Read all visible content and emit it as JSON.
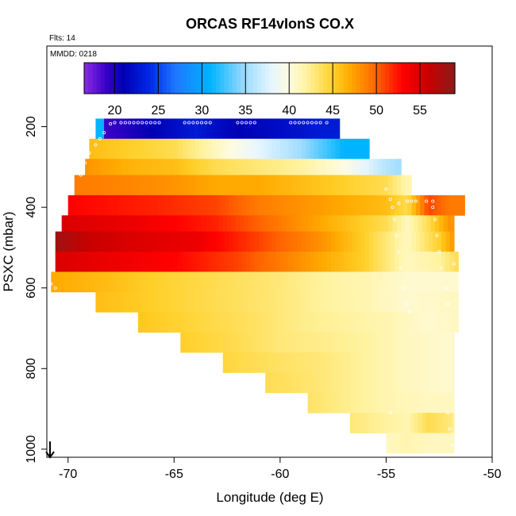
{
  "chart_data": {
    "type": "heatmap",
    "title": "ORCAS RF14vIonS CO.X",
    "annotations": {
      "flights": "Flts: 14",
      "date": "MMDD: 0218"
    },
    "xlabel": "Longitude (deg E)",
    "ylabel": "PSXC (mbar)",
    "xlim": [
      -71,
      -50
    ],
    "ylim": [
      1020,
      0
    ],
    "x_ticks": [
      -70,
      -65,
      -60,
      -55,
      -50
    ],
    "x_tick_labels": [
      "-70",
      "-65",
      "-60",
      "-55",
      "-50"
    ],
    "y_ticks": [
      200,
      400,
      600,
      800,
      1000
    ],
    "y_tick_labels": [
      "200",
      "400",
      "600",
      "800",
      "1000"
    ],
    "colorbar": {
      "range": [
        16.5,
        59
      ],
      "ticks": [
        20,
        25,
        30,
        35,
        40,
        45,
        50,
        55
      ],
      "tick_labels": [
        "20",
        "25",
        "30",
        "35",
        "40",
        "45",
        "50",
        "55"
      ],
      "stops": [
        [
          16.5,
          "#8a2be2"
        ],
        [
          19,
          "#3a00c8"
        ],
        [
          21,
          "#0000b4"
        ],
        [
          24,
          "#0028e6"
        ],
        [
          27,
          "#1e78ff"
        ],
        [
          31,
          "#00b4ff"
        ],
        [
          35,
          "#9fdcff"
        ],
        [
          38,
          "#e6f6ff"
        ],
        [
          40,
          "#fffbe0"
        ],
        [
          42,
          "#fff3a0"
        ],
        [
          45,
          "#ffd02a"
        ],
        [
          47,
          "#ffaa00"
        ],
        [
          50,
          "#ff6400"
        ],
        [
          53,
          "#ff0000"
        ],
        [
          56,
          "#c80000"
        ],
        [
          59,
          "#8b1a1a"
        ]
      ]
    },
    "rows": [
      {
        "p": [
          180,
          230
        ],
        "x": [
          -68.7,
          -57.2
        ],
        "c": [
          [
            -68.7,
            31
          ],
          [
            -68.4,
            31
          ],
          [
            -68.2,
            19
          ],
          [
            -66,
            21
          ],
          [
            -64,
            23
          ],
          [
            -62,
            21
          ],
          [
            -60,
            22
          ],
          [
            -58,
            23
          ],
          [
            -57.2,
            23
          ]
        ]
      },
      {
        "p": [
          230,
          280
        ],
        "x": [
          -69.0,
          -55.8
        ],
        "c": [
          [
            -69,
            46
          ],
          [
            -67,
            45
          ],
          [
            -65,
            44
          ],
          [
            -63,
            41
          ],
          [
            -61,
            38
          ],
          [
            -59,
            35
          ],
          [
            -57,
            31
          ],
          [
            -55.8,
            31
          ]
        ]
      },
      {
        "p": [
          280,
          320
        ],
        "x": [
          -69.2,
          -54.3
        ],
        "c": [
          [
            -69.2,
            48
          ],
          [
            -67,
            46.5
          ],
          [
            -65,
            46
          ],
          [
            -63,
            44
          ],
          [
            -61,
            43
          ],
          [
            -59,
            42
          ],
          [
            -57,
            40
          ],
          [
            -55,
            36
          ],
          [
            -54.3,
            35
          ]
        ]
      },
      {
        "p": [
          320,
          370
        ],
        "x": [
          -69.7,
          -53.8
        ],
        "c": [
          [
            -69.7,
            49
          ],
          [
            -67,
            48.5
          ],
          [
            -65,
            48
          ],
          [
            -63,
            47
          ],
          [
            -61,
            47
          ],
          [
            -59,
            46
          ],
          [
            -57,
            45
          ],
          [
            -55,
            44
          ],
          [
            -53.8,
            41
          ]
        ]
      },
      {
        "p": [
          370,
          420
        ],
        "x": [
          -70.0,
          -51.3
        ],
        "c": [
          [
            -70,
            53
          ],
          [
            -66,
            52
          ],
          [
            -63,
            51
          ],
          [
            -61,
            49
          ],
          [
            -59,
            48
          ],
          [
            -57,
            47
          ],
          [
            -55,
            46
          ],
          [
            -54,
            44
          ],
          [
            -53,
            51
          ],
          [
            -52,
            49
          ],
          [
            -51.3,
            49
          ]
        ]
      },
      {
        "p": [
          420,
          460
        ],
        "x": [
          -70.3,
          -51.8
        ],
        "c": [
          [
            -70.3,
            55
          ],
          [
            -67,
            54
          ],
          [
            -65,
            53
          ],
          [
            -63,
            52
          ],
          [
            -61,
            50
          ],
          [
            -59,
            48
          ],
          [
            -57,
            46
          ],
          [
            -55,
            44
          ],
          [
            -54,
            41
          ],
          [
            -53,
            44
          ],
          [
            -52,
            48
          ],
          [
            -51.8,
            48
          ]
        ]
      },
      {
        "p": [
          460,
          510
        ],
        "x": [
          -70.6,
          -51.8
        ],
        "c": [
          [
            -70.6,
            58
          ],
          [
            -69,
            56
          ],
          [
            -67,
            55
          ],
          [
            -64,
            54
          ],
          [
            -62,
            52
          ],
          [
            -60,
            50
          ],
          [
            -58,
            48
          ],
          [
            -56,
            45
          ],
          [
            -55,
            43
          ],
          [
            -54,
            41
          ],
          [
            -52.5,
            45
          ],
          [
            -52,
            47
          ],
          [
            -51.8,
            48
          ]
        ]
      },
      {
        "p": [
          510,
          560
        ],
        "x": [
          -70.6,
          -51.6
        ],
        "c": [
          [
            -70.6,
            55
          ],
          [
            -68,
            54
          ],
          [
            -65,
            53
          ],
          [
            -62,
            51
          ],
          [
            -60,
            49
          ],
          [
            -58,
            47
          ],
          [
            -56,
            45
          ],
          [
            -55,
            43
          ],
          [
            -54,
            41
          ],
          [
            -52.5,
            42
          ],
          [
            -51.6,
            44
          ]
        ]
      },
      {
        "p": [
          560,
          610
        ],
        "x": [
          -70.8,
          -51.6
        ],
        "c": [
          [
            -70.8,
            47
          ],
          [
            -68,
            46
          ],
          [
            -66,
            45
          ],
          [
            -63,
            44
          ],
          [
            -60,
            43
          ],
          [
            -58,
            42
          ],
          [
            -56,
            41.5
          ],
          [
            -55,
            41
          ],
          [
            -54,
            40.5
          ],
          [
            -51.6,
            40.5
          ]
        ]
      },
      {
        "p": [
          610,
          660
        ],
        "x": [
          -68.7,
          -51.6
        ],
        "c": [
          [
            -68.7,
            46
          ],
          [
            -66,
            45
          ],
          [
            -63,
            44
          ],
          [
            -60,
            43
          ],
          [
            -58,
            42
          ],
          [
            -56,
            41.5
          ],
          [
            -55,
            41
          ],
          [
            -54,
            40.5
          ],
          [
            -51.6,
            41
          ]
        ]
      },
      {
        "p": [
          660,
          710
        ],
        "x": [
          -66.7,
          -51.6
        ],
        "c": [
          [
            -66.7,
            45.5
          ],
          [
            -64,
            44.5
          ],
          [
            -61,
            43.5
          ],
          [
            -59,
            42.5
          ],
          [
            -57,
            42
          ],
          [
            -55,
            41.5
          ],
          [
            -53,
            40.5
          ],
          [
            -51.6,
            41
          ]
        ]
      },
      {
        "p": [
          710,
          760
        ],
        "x": [
          -64.7,
          -51.8
        ],
        "c": [
          [
            -64.7,
            45
          ],
          [
            -62,
            44
          ],
          [
            -60,
            43
          ],
          [
            -58,
            42.5
          ],
          [
            -56,
            42
          ],
          [
            -54,
            41
          ],
          [
            -52,
            40.5
          ],
          [
            -51.8,
            41
          ]
        ]
      },
      {
        "p": [
          760,
          810
        ],
        "x": [
          -62.7,
          -51.8
        ],
        "c": [
          [
            -62.7,
            44.5
          ],
          [
            -60,
            43.5
          ],
          [
            -58,
            43
          ],
          [
            -56,
            42
          ],
          [
            -54,
            41
          ],
          [
            -52,
            40.5
          ],
          [
            -51.8,
            41
          ]
        ]
      },
      {
        "p": [
          810,
          860
        ],
        "x": [
          -60.7,
          -51.8
        ],
        "c": [
          [
            -60.7,
            44
          ],
          [
            -58,
            43
          ],
          [
            -56,
            42
          ],
          [
            -54,
            41
          ],
          [
            -52,
            40.5
          ],
          [
            -51.8,
            41
          ]
        ]
      },
      {
        "p": [
          860,
          910
        ],
        "x": [
          -58.7,
          -51.8
        ],
        "c": [
          [
            -58.7,
            43.5
          ],
          [
            -57,
            42.5
          ],
          [
            -55,
            41.5
          ],
          [
            -53,
            41
          ],
          [
            -51.8,
            41
          ]
        ]
      },
      {
        "p": [
          910,
          960
        ],
        "x": [
          -56.7,
          -51.8
        ],
        "c": [
          [
            -56.7,
            43
          ],
          [
            -55,
            42
          ],
          [
            -54,
            41.5
          ],
          [
            -53,
            44
          ],
          [
            -52,
            43
          ],
          [
            -51.8,
            42
          ]
        ]
      },
      {
        "p": [
          960,
          1010
        ],
        "x": [
          -55.0,
          -51.8
        ],
        "c": [
          [
            -55,
            41
          ],
          [
            -54,
            41.5
          ],
          [
            -53,
            41
          ],
          [
            -52,
            41
          ],
          [
            -51.8,
            41
          ]
        ]
      }
    ],
    "markers": [
      [
        -68.0,
        193
      ],
      [
        -67.8,
        190
      ],
      [
        -67.5,
        190
      ],
      [
        -67.3,
        190
      ],
      [
        -67.1,
        190
      ],
      [
        -66.9,
        190
      ],
      [
        -66.7,
        190
      ],
      [
        -66.5,
        190
      ],
      [
        -66.3,
        190
      ],
      [
        -66.1,
        190
      ],
      [
        -65.9,
        190
      ],
      [
        -65.7,
        190
      ],
      [
        -64.5,
        190
      ],
      [
        -64.3,
        190
      ],
      [
        -64.1,
        190
      ],
      [
        -63.9,
        190
      ],
      [
        -63.7,
        190
      ],
      [
        -63.5,
        190
      ],
      [
        -63.3,
        190
      ],
      [
        -62.0,
        190
      ],
      [
        -61.8,
        190
      ],
      [
        -61.6,
        190
      ],
      [
        -61.4,
        190
      ],
      [
        -61.2,
        190
      ],
      [
        -59.5,
        190
      ],
      [
        -59.3,
        190
      ],
      [
        -59.1,
        190
      ],
      [
        -58.9,
        190
      ],
      [
        -58.7,
        190
      ],
      [
        -58.5,
        190
      ],
      [
        -58.3,
        190
      ],
      [
        -58.1,
        190
      ],
      [
        -57.8,
        190
      ],
      [
        -68.3,
        215
      ],
      [
        -68.5,
        230
      ],
      [
        -68.7,
        245
      ],
      [
        -69.0,
        265
      ],
      [
        -69.2,
        290
      ],
      [
        -69.4,
        320
      ],
      [
        -55.0,
        355
      ],
      [
        -54.8,
        380
      ],
      [
        -54.4,
        390
      ],
      [
        -54.0,
        385
      ],
      [
        -53.8,
        385
      ],
      [
        -53.6,
        385
      ],
      [
        -53.1,
        385
      ],
      [
        -52.8,
        385
      ],
      [
        -54.7,
        400
      ],
      [
        -54.6,
        430
      ],
      [
        -54.5,
        470
      ],
      [
        -54.4,
        510
      ],
      [
        -54.3,
        550
      ],
      [
        -54.2,
        600
      ],
      [
        -54.0,
        640
      ],
      [
        -53.9,
        660
      ],
      [
        -52.8,
        400
      ],
      [
        -52.7,
        430
      ],
      [
        -52.6,
        470
      ],
      [
        -52.5,
        510
      ],
      [
        -52.4,
        550
      ],
      [
        -52.2,
        600
      ],
      [
        -52.1,
        640
      ],
      [
        -51.8,
        540
      ],
      [
        -54.8,
        910
      ],
      [
        -52.1,
        910
      ],
      [
        -52.0,
        950
      ],
      [
        -51.9,
        990
      ],
      [
        -70.8,
        590
      ],
      [
        -70.6,
        600
      ]
    ]
  }
}
